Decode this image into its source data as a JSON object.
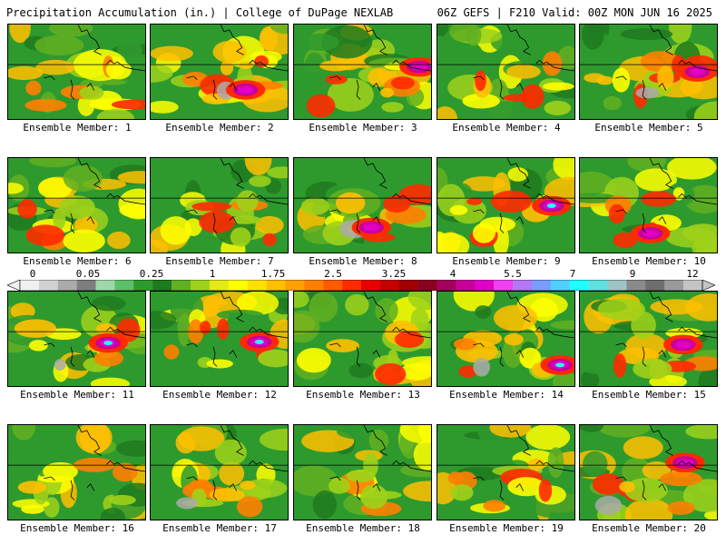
{
  "header": {
    "left": "Precipitation Accumulation (in.) | College of DuPage NEXLAB",
    "right": "06Z GEFS | F210 Valid: 00Z MON JUN 16 2025"
  },
  "members": [
    {
      "label": "Ensemble Member: 1"
    },
    {
      "label": "Ensemble Member: 2"
    },
    {
      "label": "Ensemble Member: 3"
    },
    {
      "label": "Ensemble Member: 4"
    },
    {
      "label": "Ensemble Member: 5"
    },
    {
      "label": "Ensemble Member: 6"
    },
    {
      "label": "Ensemble Member: 7"
    },
    {
      "label": "Ensemble Member: 8"
    },
    {
      "label": "Ensemble Member: 9"
    },
    {
      "label": "Ensemble Member: 10"
    },
    {
      "label": "Ensemble Member: 11"
    },
    {
      "label": "Ensemble Member: 12"
    },
    {
      "label": "Ensemble Member: 13"
    },
    {
      "label": "Ensemble Member: 14"
    },
    {
      "label": "Ensemble Member: 15"
    },
    {
      "label": "Ensemble Member: 16"
    },
    {
      "label": "Ensemble Member: 17"
    },
    {
      "label": "Ensemble Member: 18"
    },
    {
      "label": "Ensemble Member: 19"
    },
    {
      "label": "Ensemble Member: 20"
    }
  ],
  "colorbar": {
    "labels": [
      "0",
      "0.05",
      "0.25",
      "1",
      "1.75",
      "2.5",
      "3.25",
      "4",
      "5.5",
      "7",
      "9",
      "12"
    ],
    "colors": [
      "#f0f0f0",
      "#d2d2d2",
      "#aaaaaa",
      "#7e7e7e",
      "#9ed8a8",
      "#5cbf6a",
      "#2e9a2e",
      "#1e7a1e",
      "#62b021",
      "#9ed21a",
      "#e4ea16",
      "#ffff00",
      "#ffe000",
      "#ffc000",
      "#ffa000",
      "#ff8000",
      "#ff5a00",
      "#ff2a00",
      "#e80000",
      "#c40000",
      "#a00000",
      "#8c0020",
      "#a4005c",
      "#c8009a",
      "#e000c8",
      "#f040f0",
      "#b478f4",
      "#7a9cff",
      "#50d0ff",
      "#20ffff",
      "#60e0e0",
      "#9ec4c4",
      "#8a8a8a",
      "#6e6e6e",
      "#9a9a9a",
      "#c4c4c4"
    ]
  }
}
